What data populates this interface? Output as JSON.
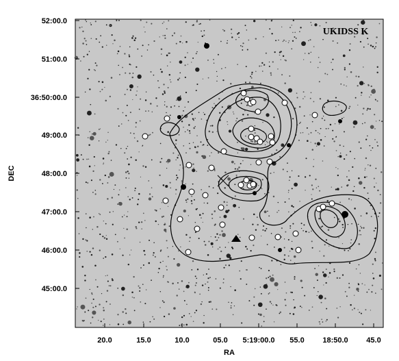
{
  "figure": {
    "label": "UKIDSS K",
    "x_axis": {
      "title": "RA",
      "ticks": [
        "20.0",
        "15.0",
        "10.0",
        "05.0",
        "5:19:00.0",
        "55.0",
        "18:50.0",
        "45.0"
      ]
    },
    "y_axis": {
      "title": "DEC",
      "ticks": [
        "52:00.0",
        "51:00.0",
        "36:50:00.0",
        "49:00.0",
        "48:00.0",
        "47:00.0",
        "46:00.0",
        "45:00.0"
      ]
    }
  }
}
